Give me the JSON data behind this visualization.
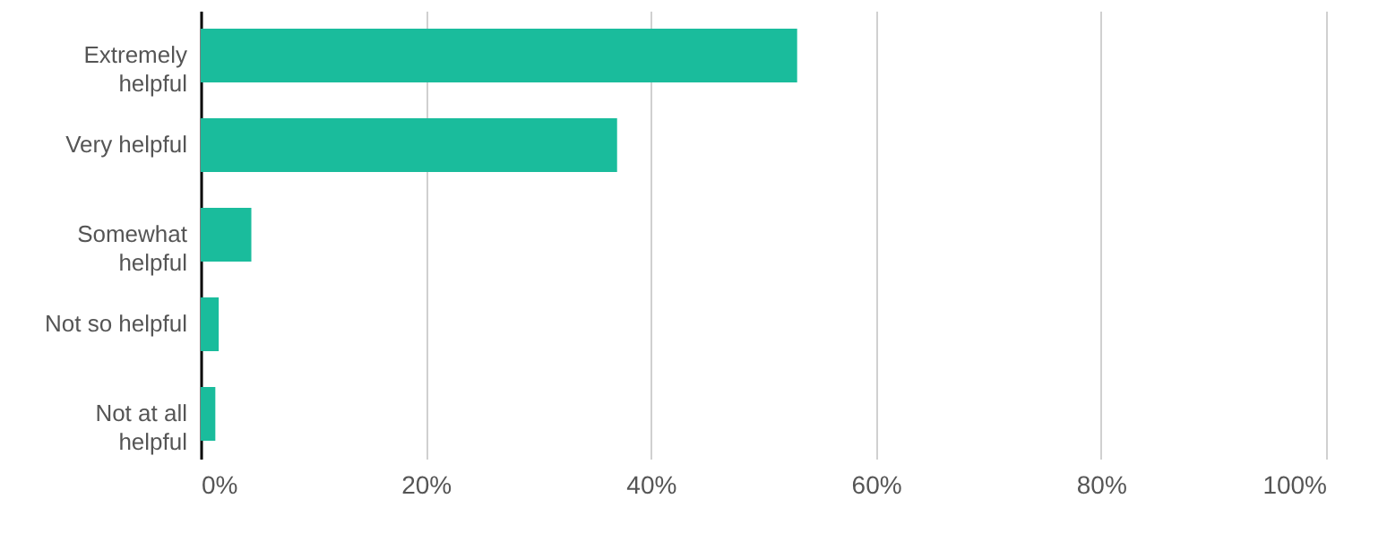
{
  "chart_data": {
    "type": "bar",
    "orientation": "horizontal",
    "categories": [
      "Extremely helpful",
      "Very helpful",
      "Somewhat helpful",
      "Not so helpful",
      "Not at all helpful"
    ],
    "values": [
      53,
      37,
      4.5,
      1.6,
      1.3
    ],
    "color": "#1abc9c",
    "xlim": [
      0,
      100
    ],
    "xticks": [
      {
        "value": 0,
        "label": "0%"
      },
      {
        "value": 20,
        "label": "20%"
      },
      {
        "value": 40,
        "label": "40%"
      },
      {
        "value": 60,
        "label": "60%"
      },
      {
        "value": 80,
        "label": "80%"
      },
      {
        "value": 100,
        "label": "100%"
      }
    ],
    "grid": "x"
  }
}
